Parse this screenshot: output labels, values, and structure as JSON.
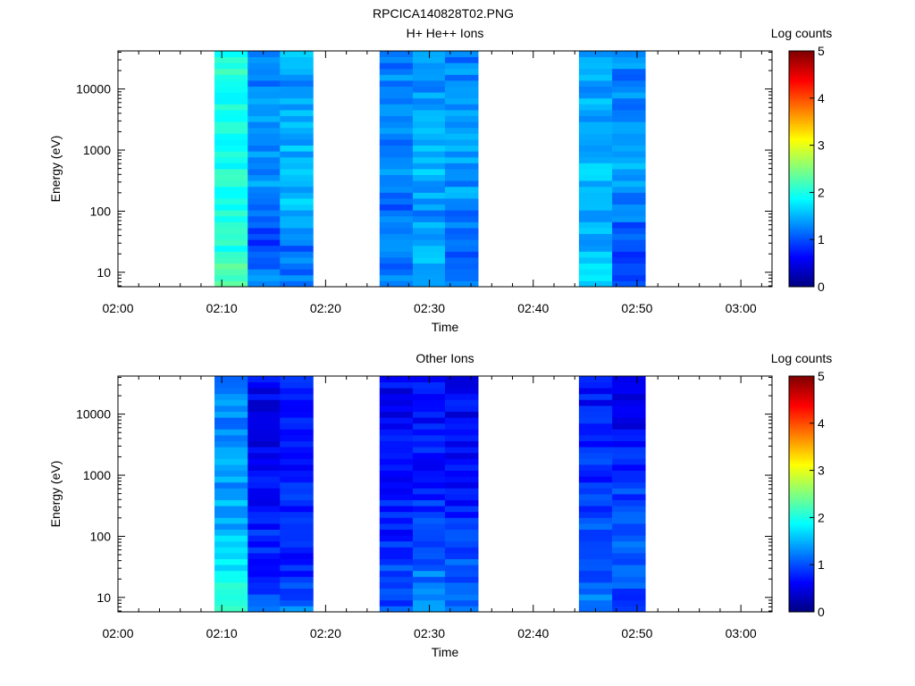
{
  "figure_title": "RPCICA140828T02.PNG",
  "chart_data": [
    {
      "type": "heatmap",
      "title": "H+ He++ Ions",
      "xlabel": "Time",
      "ylabel": "Energy (eV)",
      "x_ticks": [
        "02:00",
        "02:10",
        "02:20",
        "02:30",
        "02:40",
        "02:50",
        "03:00"
      ],
      "x_range_minutes": [
        0,
        63
      ],
      "y_scale": "log",
      "y_ticks": [
        "10",
        "100",
        "1000",
        "10000"
      ],
      "y_range": [
        5.8,
        42000
      ],
      "grid": false,
      "colorbar": {
        "label": "Log counts",
        "ticks": [
          "0",
          "1",
          "2",
          "3",
          "4",
          "5"
        ],
        "range": [
          0,
          5
        ],
        "colormap": "jet"
      },
      "columns": [
        {
          "t0": 9.3,
          "t1": 12.5,
          "anchors": [
            2.3,
            2.0,
            2.0,
            2.0,
            1.9,
            2.0,
            2.0
          ]
        },
        {
          "t0": 12.5,
          "t1": 15.6,
          "anchors": [
            1.35,
            0.9,
            1.2,
            1.4,
            1.4,
            1.3,
            1.3
          ]
        },
        {
          "t0": 15.6,
          "t1": 18.8,
          "anchors": [
            1.15,
            1.2,
            1.5,
            1.5,
            1.5,
            1.4,
            1.45
          ]
        },
        {
          "t0": 25.2,
          "t1": 28.4,
          "anchors": [
            1.2,
            1.3,
            1.1,
            1.4,
            1.2,
            1.3,
            1.25
          ]
        },
        {
          "t0": 28.4,
          "t1": 31.5,
          "anchors": [
            1.6,
            1.5,
            1.3,
            1.5,
            1.5,
            1.4,
            1.4
          ]
        },
        {
          "t0": 31.5,
          "t1": 34.7,
          "anchors": [
            1.3,
            1.0,
            1.3,
            1.4,
            1.3,
            1.35,
            1.25
          ]
        },
        {
          "t0": 44.4,
          "t1": 47.6,
          "anchors": [
            1.7,
            1.5,
            1.4,
            1.6,
            1.5,
            1.45,
            1.5
          ]
        },
        {
          "t0": 47.6,
          "t1": 50.8,
          "anchors": [
            0.9,
            1.0,
            1.2,
            1.4,
            1.35,
            1.3,
            1.25
          ]
        }
      ]
    },
    {
      "type": "heatmap",
      "title": "Other Ions",
      "xlabel": "Time",
      "ylabel": "Energy (eV)",
      "x_ticks": [
        "02:00",
        "02:10",
        "02:20",
        "02:30",
        "02:40",
        "02:50",
        "03:00"
      ],
      "x_range_minutes": [
        0,
        63
      ],
      "y_scale": "log",
      "y_ticks": [
        "10",
        "100",
        "1000",
        "10000"
      ],
      "y_range": [
        5.8,
        42000
      ],
      "grid": false,
      "colorbar": {
        "label": "Log counts",
        "ticks": [
          "0",
          "1",
          "2",
          "3",
          "4",
          "5"
        ],
        "range": [
          0,
          5
        ],
        "colormap": "jet"
      },
      "columns": [
        {
          "t0": 9.3,
          "t1": 12.5,
          "anchors": [
            1.95,
            1.85,
            1.55,
            1.4,
            1.35,
            1.3,
            1.3
          ]
        },
        {
          "t0": 12.5,
          "t1": 15.6,
          "anchors": [
            1.2,
            0.8,
            0.8,
            0.7,
            0.6,
            0.55,
            0.6
          ]
        },
        {
          "t0": 15.6,
          "t1": 18.8,
          "anchors": [
            1.3,
            0.7,
            0.9,
            0.8,
            0.7,
            0.65,
            0.7
          ]
        },
        {
          "t0": 25.2,
          "t1": 28.4,
          "anchors": [
            0.95,
            1.0,
            0.8,
            0.7,
            0.65,
            0.6,
            0.6
          ]
        },
        {
          "t0": 28.4,
          "t1": 31.5,
          "anchors": [
            1.3,
            1.2,
            1.0,
            0.85,
            0.7,
            0.7,
            0.65
          ]
        },
        {
          "t0": 31.5,
          "t1": 34.7,
          "anchors": [
            1.2,
            1.1,
            0.9,
            0.7,
            0.6,
            0.6,
            0.6
          ]
        },
        {
          "t0": 44.4,
          "t1": 47.6,
          "anchors": [
            1.3,
            1.0,
            1.0,
            0.9,
            0.8,
            0.7,
            0.7
          ]
        },
        {
          "t0": 47.6,
          "t1": 50.8,
          "anchors": [
            0.7,
            1.1,
            1.0,
            0.9,
            0.75,
            0.55,
            0.6
          ]
        }
      ]
    }
  ]
}
